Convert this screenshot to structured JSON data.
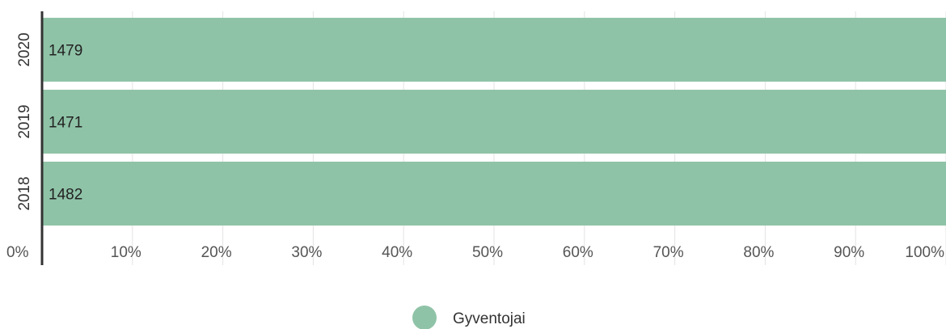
{
  "chart_data": {
    "type": "bar",
    "orientation": "horizontal",
    "stacking": "percent",
    "categories": [
      "2020",
      "2019",
      "2018"
    ],
    "series": [
      {
        "name": "Gyventojai",
        "values": [
          1479,
          1471,
          1482
        ],
        "color": "#8fc3a7"
      }
    ],
    "x_ticks": [
      "0%",
      "10%",
      "20%",
      "30%",
      "40%",
      "50%",
      "60%",
      "70%",
      "80%",
      "90%",
      "100%"
    ],
    "xlim": [
      0,
      100
    ],
    "grid": true,
    "legend_position": "bottom",
    "title": "",
    "xlabel": "",
    "ylabel": ""
  }
}
